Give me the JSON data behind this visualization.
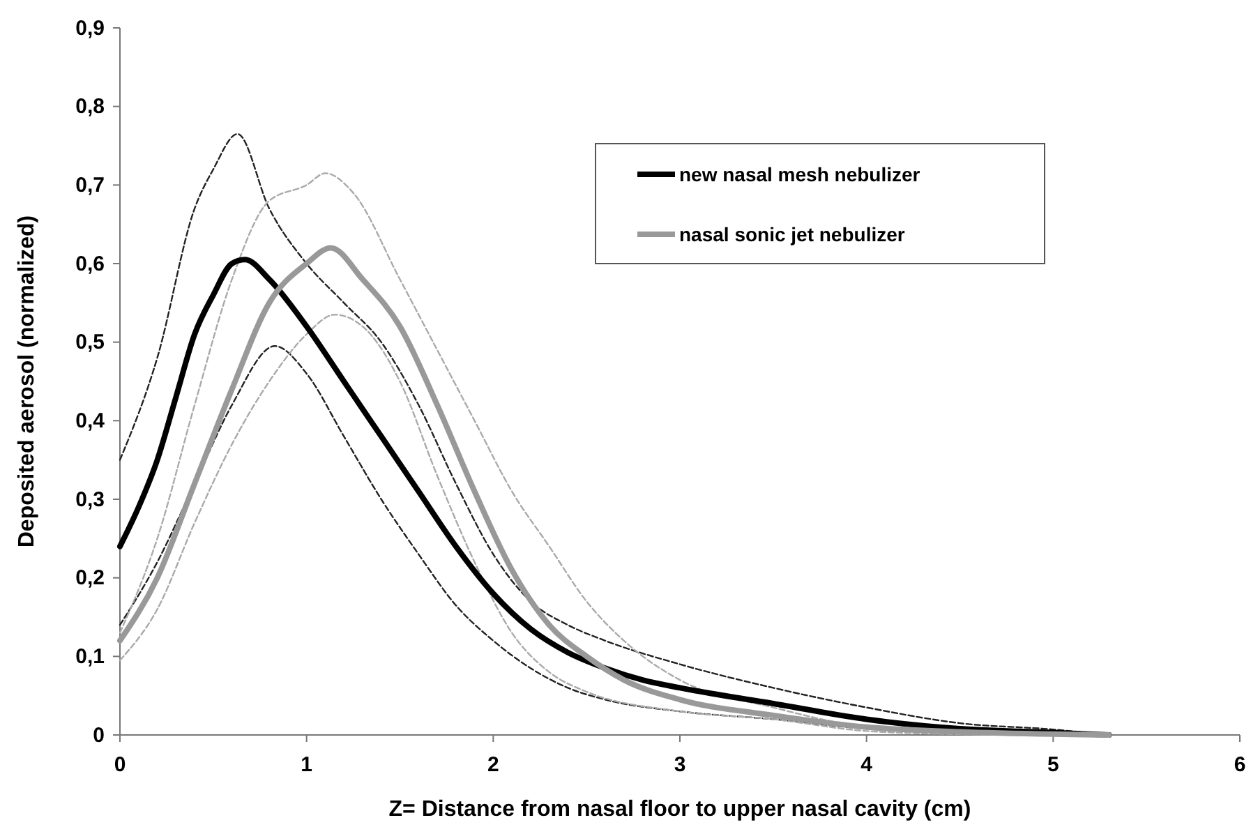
{
  "chart_data": {
    "type": "line",
    "xlabel": "Z= Distance from nasal floor to upper nasal cavity (cm)",
    "ylabel": "Deposited aerosol (normalized)",
    "xlim": [
      0,
      6
    ],
    "xticks": [
      0,
      1,
      2,
      3,
      4,
      5,
      6
    ],
    "ylim": [
      0,
      0.9
    ],
    "yticks": [
      0,
      {
        "value": 0.1,
        "label": "0,1"
      },
      {
        "value": 0.2,
        "label": "0,2"
      },
      {
        "value": 0.3,
        "label": "0,3"
      },
      {
        "value": 0.4,
        "label": "0,4"
      },
      {
        "value": 0.5,
        "label": "0,5"
      },
      {
        "value": 0.6,
        "label": "0,6"
      },
      {
        "value": 0.7,
        "label": "0,7"
      },
      {
        "value": 0.8,
        "label": "0,8"
      },
      {
        "value": 0.9,
        "label": "0,9"
      }
    ],
    "grid": false,
    "legend": "top right",
    "marker": "none",
    "series": [
      {
        "color": "#222222",
        "line_style": "dashed",
        "x": [
          0,
          0.2,
          0.4,
          0.5,
          0.63,
          0.8,
          1.0,
          1.2,
          1.4,
          1.6,
          1.8,
          2.0,
          2.2,
          2.4,
          2.6,
          3.0,
          3.5,
          4.0,
          4.5,
          5.0,
          5.3
        ],
        "values": [
          0.35,
          0.48,
          0.67,
          0.72,
          0.765,
          0.67,
          0.6,
          0.55,
          0.5,
          0.42,
          0.32,
          0.23,
          0.17,
          0.14,
          0.12,
          0.09,
          0.06,
          0.035,
          0.015,
          0.007,
          0
        ]
      },
      {
        "color": "#222222",
        "line_style": "dashed",
        "x": [
          0,
          0.2,
          0.4,
          0.6,
          0.83,
          1.0,
          1.2,
          1.4,
          1.6,
          1.8,
          2.0,
          2.2,
          2.4,
          2.6,
          3.0,
          3.5,
          4.0,
          4.5,
          5.0
        ],
        "values": [
          0.14,
          0.22,
          0.32,
          0.42,
          0.495,
          0.46,
          0.38,
          0.3,
          0.23,
          0.165,
          0.12,
          0.085,
          0.06,
          0.045,
          0.03,
          0.02,
          0.008,
          0.003,
          0
        ]
      },
      {
        "color": "#aaaaaa",
        "line_style": "dashed",
        "x": [
          0,
          0.2,
          0.4,
          0.6,
          0.8,
          1.0,
          1.1,
          1.25,
          1.5,
          1.7,
          1.9,
          2.1,
          2.3,
          2.5,
          2.7,
          3.0,
          3.5,
          4.0,
          4.5,
          5.3
        ],
        "values": [
          0.13,
          0.25,
          0.42,
          0.58,
          0.68,
          0.7,
          0.715,
          0.69,
          0.58,
          0.49,
          0.4,
          0.31,
          0.24,
          0.17,
          0.12,
          0.07,
          0.035,
          0.01,
          0.003,
          0
        ]
      },
      {
        "color": "#aaaaaa",
        "line_style": "dashed",
        "x": [
          0,
          0.2,
          0.4,
          0.6,
          0.8,
          1.0,
          1.15,
          1.3,
          1.5,
          1.7,
          1.9,
          2.1,
          2.3,
          2.5,
          3.0,
          3.5,
          4.0,
          4.5,
          5.0
        ],
        "values": [
          0.095,
          0.16,
          0.27,
          0.37,
          0.45,
          0.51,
          0.535,
          0.52,
          0.45,
          0.33,
          0.22,
          0.13,
          0.08,
          0.055,
          0.03,
          0.02,
          0.005,
          0.001,
          0
        ]
      },
      {
        "name": "new nasal mesh nebulizer",
        "color": "#000000",
        "line_style": "solid",
        "x": [
          0,
          0.1,
          0.2,
          0.3,
          0.4,
          0.5,
          0.6,
          0.67,
          0.8,
          1.0,
          1.2,
          1.4,
          1.6,
          1.8,
          2.0,
          2.2,
          2.4,
          2.6,
          2.8,
          3.0,
          3.5,
          4.0,
          4.5,
          5.0,
          5.3
        ],
        "values": [
          0.24,
          0.29,
          0.35,
          0.43,
          0.51,
          0.56,
          0.6,
          0.605,
          0.58,
          0.52,
          0.45,
          0.38,
          0.31,
          0.24,
          0.18,
          0.135,
          0.105,
          0.085,
          0.07,
          0.06,
          0.04,
          0.02,
          0.008,
          0.003,
          0
        ]
      },
      {
        "name": "nasal sonic jet nebulizer",
        "color": "#999999",
        "line_style": "solid",
        "x": [
          0,
          0.2,
          0.4,
          0.6,
          0.8,
          1.0,
          1.13,
          1.3,
          1.5,
          1.7,
          1.9,
          2.1,
          2.3,
          2.5,
          2.7,
          3.0,
          3.5,
          4.0,
          4.5,
          5.0,
          5.3
        ],
        "values": [
          0.12,
          0.2,
          0.32,
          0.44,
          0.55,
          0.6,
          0.62,
          0.58,
          0.52,
          0.42,
          0.31,
          0.21,
          0.14,
          0.1,
          0.07,
          0.045,
          0.025,
          0.01,
          0.004,
          0.001,
          0
        ]
      }
    ]
  }
}
